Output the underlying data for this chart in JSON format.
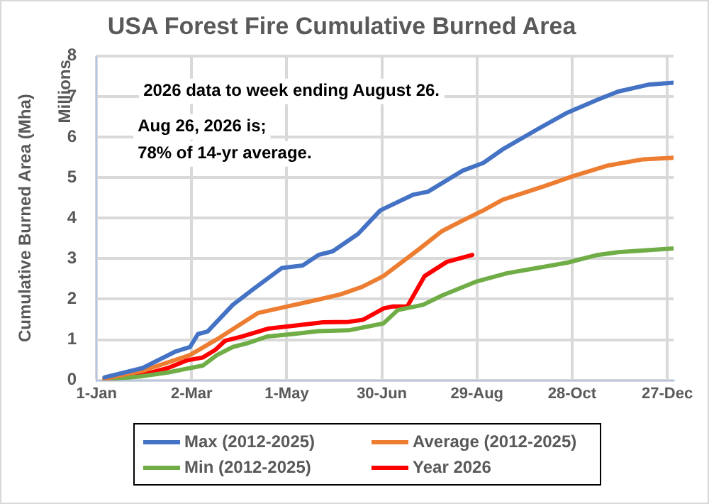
{
  "chart_data": {
    "type": "line",
    "title": "USA Forest Fire Cumulative Burned Area",
    "ylabel": "Cumulative Burned Area (Mha)",
    "annotations": [
      "Millions",
      "2026 data to week ending August 26.",
      "Aug 26, 2026 is;",
      "78% of 14-yr average."
    ],
    "xlim": [
      "--01-01",
      "--12-31"
    ],
    "xticks": [
      {
        "value": "--01-01",
        "label": "1-Jan"
      },
      {
        "value": "--03-02",
        "label": "2-Mar"
      },
      {
        "value": "--05-01",
        "label": "1-May"
      },
      {
        "value": "--06-30",
        "label": "30-Jun"
      },
      {
        "value": "--08-29",
        "label": "29-Aug"
      },
      {
        "value": "--10-28",
        "label": "28-Oct"
      },
      {
        "value": "--12-27",
        "label": "27-Dec"
      }
    ],
    "ylim": [
      0,
      8
    ],
    "yticks": [
      0,
      1,
      2,
      3,
      4,
      5,
      6,
      7,
      8
    ],
    "grid": true,
    "legend": "bottom",
    "marker": "none",
    "line_style": "solid",
    "series": [
      {
        "name": "Max (2012-2025)",
        "color": "#4472c4",
        "x": [
          "--01-06",
          "--01-30",
          "--02-20",
          "--03-01",
          "--03-06",
          "--03-12",
          "--03-28",
          "--04-10",
          "--04-28",
          "--05-11",
          "--05-21",
          "--05-30",
          "--06-15",
          "--06-29",
          "--07-20",
          "--07-29",
          "--08-20",
          "--09-02",
          "--09-14",
          "--10-07",
          "--10-25",
          "--11-13",
          "--11-26",
          "--12-15",
          "--12-31"
        ],
        "values": [
          0.07,
          0.3,
          0.71,
          0.82,
          1.14,
          1.2,
          1.86,
          2.25,
          2.77,
          2.83,
          3.09,
          3.18,
          3.61,
          4.19,
          4.58,
          4.65,
          5.17,
          5.36,
          5.69,
          6.21,
          6.6,
          6.92,
          7.12,
          7.29,
          7.34
        ]
      },
      {
        "name": "Average (2012-2025)",
        "color": "#ed7d31",
        "x": [
          "--01-06",
          "--01-30",
          "--03-01",
          "--03-18",
          "--04-13",
          "--04-28",
          "--05-21",
          "--06-04",
          "--06-18",
          "--07-01",
          "--07-23",
          "--08-07",
          "--08-20",
          "--09-02",
          "--09-14",
          "--10-10",
          "--10-29",
          "--11-20",
          "--12-12",
          "--12-31"
        ],
        "values": [
          0.04,
          0.23,
          0.62,
          1.01,
          1.66,
          1.79,
          1.99,
          2.12,
          2.31,
          2.57,
          3.22,
          3.68,
          3.94,
          4.19,
          4.45,
          4.78,
          5.04,
          5.3,
          5.45,
          5.49
        ]
      },
      {
        "name": "Min (2012-2025)",
        "color": "#70ad47",
        "x": [
          "--01-06",
          "--01-30",
          "--02-15",
          "--03-01",
          "--03-09",
          "--03-18",
          "--03-28",
          "--04-06",
          "--04-19",
          "--05-05",
          "--05-21",
          "--06-09",
          "--07-01",
          "--07-10",
          "--07-26",
          "--08-07",
          "--08-29",
          "--09-17",
          "--10-25",
          "--11-13",
          "--11-26",
          "--12-31"
        ],
        "values": [
          0.01,
          0.1,
          0.19,
          0.3,
          0.36,
          0.62,
          0.82,
          0.91,
          1.08,
          1.14,
          1.21,
          1.23,
          1.4,
          1.73,
          1.86,
          2.09,
          2.44,
          2.64,
          2.9,
          3.09,
          3.16,
          3.25
        ]
      },
      {
        "name": "Year 2026",
        "color": "#ff0000",
        "x": [
          "--01-06",
          "--01-30",
          "--02-15",
          "--02-27",
          "--03-09",
          "--03-17",
          "--03-23",
          "--04-03",
          "--04-19",
          "--05-05",
          "--05-24",
          "--06-09",
          "--06-18",
          "--07-01",
          "--07-07",
          "--07-16",
          "--07-27",
          "--08-10",
          "--08-26"
        ],
        "values": [
          0.01,
          0.13,
          0.3,
          0.49,
          0.56,
          0.75,
          0.97,
          1.08,
          1.27,
          1.34,
          1.43,
          1.44,
          1.49,
          1.77,
          1.82,
          1.82,
          2.57,
          2.92,
          3.09
        ]
      }
    ]
  }
}
